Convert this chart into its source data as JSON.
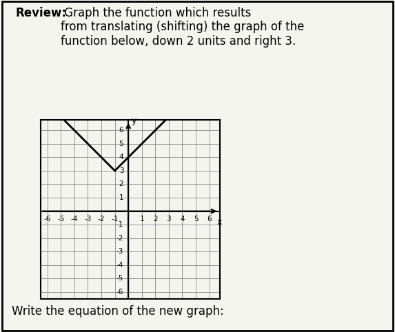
{
  "review_bold": "Review:",
  "review_text": " Graph the function which results\nfrom translating (shifting) the graph of the\nfunction below, down 2 units and right 3.",
  "xlabel": "x",
  "ylabel": "y",
  "xlim": [
    -6.5,
    6.8
  ],
  "ylim": [
    -6.5,
    6.8
  ],
  "xticks": [
    -6,
    -5,
    -4,
    -3,
    -2,
    -1,
    1,
    2,
    3,
    4,
    5,
    6
  ],
  "yticks": [
    -6,
    -5,
    -4,
    -3,
    -2,
    -1,
    1,
    2,
    3,
    4,
    5,
    6
  ],
  "axis_color": "#000000",
  "line_color": "#000000",
  "grid_color": "#888888",
  "background_color": "#f5f5f0",
  "vertex_x": -1,
  "vertex_y": 3,
  "footer_text": "Write the equation of the new graph:",
  "fig_border_color": "#000000"
}
